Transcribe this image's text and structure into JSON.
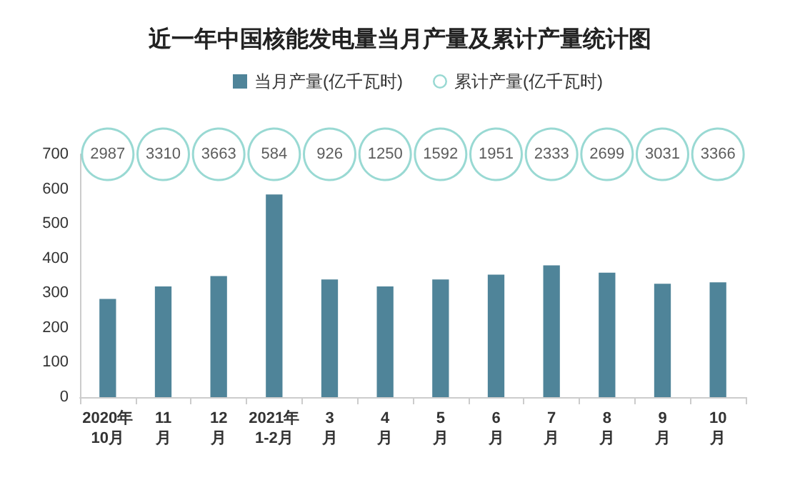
{
  "chart_data": [
    {
      "type": "other",
      "title": "近一年中国核能发电量当月产量及累计产量统计图",
      "categories": [
        null,
        null,
        null,
        null,
        null,
        null,
        null,
        null,
        null,
        null,
        null,
        null
      ],
      "series": [
        {
          "name": "累计产量(亿千瓦时)",
          "color": "#7fd0c8",
          "values": [
            2987,
            3310,
            3663,
            584,
            926,
            1250,
            1592,
            1951,
            2333,
            2699,
            3031,
            3366
          ]
        }
      ],
      "legend": "top",
      "data_labels": true
    },
    {
      "type": "bar",
      "categories": [
        "2020年\n10月",
        "11\n月",
        "12\n月",
        "2021年\n1-2月",
        "3\n月",
        "4\n月",
        "5\n月",
        "6\n月",
        "7\n月",
        "8\n月",
        "9\n月",
        "10\n月"
      ],
      "series": [
        {
          "name": "当月产量(亿千瓦时)",
          "color": "#4f8499",
          "values": [
            283,
            319,
            349,
            584,
            339,
            319,
            339,
            353,
            380,
            359,
            327,
            331
          ]
        }
      ],
      "ylim": [
        0,
        700
      ],
      "yticks": [
        0,
        100,
        200,
        300,
        400,
        500,
        600,
        700
      ],
      "grid": false,
      "legend": "top"
    }
  ]
}
